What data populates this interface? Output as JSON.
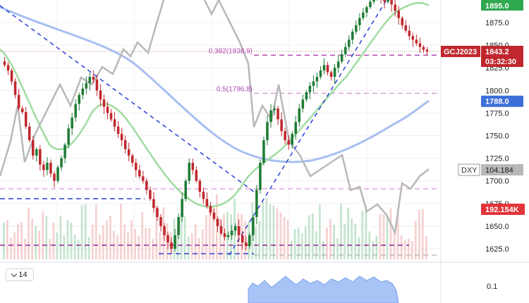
{
  "chart_data": {
    "type": "candlestick",
    "symbol": "GCJ2023",
    "last_price": "1843.2",
    "countdown": "03:32:30",
    "y_axis": {
      "ticks": [
        "1875.0",
        "1850.0",
        "1825.0",
        "1800.0",
        "1775.0",
        "1750.0",
        "1725.0",
        "1700.0",
        "1675.0",
        "1650.0",
        "1625.0"
      ],
      "range": [
        1610,
        1905
      ]
    },
    "fib_levels": [
      {
        "label": "0.382(1838.9)",
        "value": 1838.9
      },
      {
        "label": "0.5(1796.8)",
        "value": 1796.8
      }
    ],
    "price_tags": [
      {
        "label": "1895.0",
        "value": 1895.0,
        "color": "#2fa84f"
      },
      {
        "label": "1788.0",
        "value": 1788.0,
        "color": "#3d6fd8"
      }
    ],
    "overlay_tags": [
      {
        "name": "DXY",
        "value": "104.184"
      },
      {
        "name": "volume",
        "value": "192.154K"
      }
    ],
    "lower_pane": {
      "tick": "0.1"
    },
    "indicator_selector": {
      "value": "14"
    },
    "candles_close": [
      1828,
      1822,
      1810,
      1795,
      1780,
      1776,
      1760,
      1745,
      1728,
      1735,
      1718,
      1712,
      1720,
      1708,
      1700,
      1715,
      1725,
      1740,
      1758,
      1770,
      1785,
      1795,
      1802,
      1808,
      1815,
      1812,
      1800,
      1790,
      1782,
      1775,
      1768,
      1760,
      1752,
      1745,
      1735,
      1728,
      1720,
      1712,
      1705,
      1700,
      1690,
      1680,
      1670,
      1660,
      1650,
      1640,
      1632,
      1625,
      1640,
      1660,
      1680,
      1700,
      1720,
      1712,
      1700,
      1688,
      1680,
      1672,
      1665,
      1658,
      1650,
      1642,
      1638,
      1640,
      1645,
      1650,
      1640,
      1632,
      1628,
      1640,
      1660,
      1690,
      1720,
      1745,
      1765,
      1778,
      1780,
      1768,
      1755,
      1745,
      1740,
      1752,
      1765,
      1780,
      1790,
      1798,
      1805,
      1810,
      1815,
      1822,
      1828,
      1820,
      1815,
      1825,
      1832,
      1840,
      1848,
      1856,
      1865,
      1872,
      1880,
      1886,
      1892,
      1898,
      1903,
      1905,
      1902,
      1898,
      1900,
      1895,
      1888,
      1880,
      1872,
      1866,
      1860,
      1856,
      1852,
      1848,
      1845,
      1843.2
    ]
  }
}
